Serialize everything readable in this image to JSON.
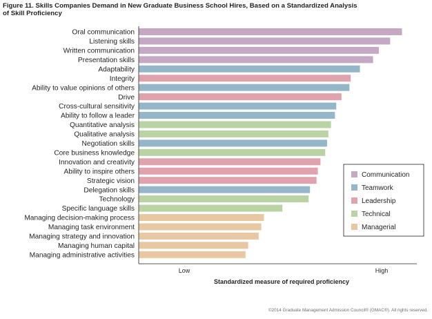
{
  "title_line1": "Figure 11. Skills Companies Demand in New Graduate Business School Hires, Based on a Standardized Analysis",
  "title_line2": "of Skill Proficiency",
  "copyright": "©2014 Graduate Management Admission Council® (GMAC®). All rights reserved.",
  "colors": {
    "Communication": "#c5a8c4",
    "Teamwork": "#95b5c8",
    "Leadership": "#e0a2ac",
    "Technical": "#bad3a4",
    "Managerial": "#e8c8a2"
  },
  "chart_data": {
    "type": "bar",
    "orientation": "horizontal",
    "xlabel": "Standardized measure of required proficiency",
    "ylabel": "",
    "x_ticks": [
      "Low",
      "High"
    ],
    "xlim": [
      0,
      100
    ],
    "legend_position": "right",
    "legend": [
      "Communication",
      "Teamwork",
      "Leadership",
      "Technical",
      "Managerial"
    ],
    "categories": [
      "Oral communication",
      "Listening skills",
      "Written communication",
      "Presentation skills",
      "Adaptability",
      "Integrity",
      "Ability to value opinions of others",
      "Drive",
      "Cross-cultural sensitivity",
      "Ability to follow a leader",
      "Quantitative analysis",
      "Qualitative analysis",
      "Negotiation skills",
      "Core business knowledge",
      "Innovation and creativity",
      "Ability to inspire others",
      "Strategic vision",
      "Delegation skills",
      "Technology",
      "Specific language skills",
      "Managing decision-making process",
      "Managing task environment",
      "Managing strategy and innovation",
      "Managing human capital",
      "Managing administrative activities"
    ],
    "groups": [
      "Communication",
      "Communication",
      "Communication",
      "Communication",
      "Teamwork",
      "Leadership",
      "Teamwork",
      "Leadership",
      "Teamwork",
      "Teamwork",
      "Technical",
      "Technical",
      "Teamwork",
      "Technical",
      "Leadership",
      "Leadership",
      "Leadership",
      "Teamwork",
      "Technical",
      "Technical",
      "Managerial",
      "Managerial",
      "Managerial",
      "Managerial",
      "Managerial"
    ],
    "values": [
      100,
      95.5,
      91.2,
      89.0,
      84.0,
      80.5,
      80.0,
      77.0,
      75.0,
      74.5,
      73.0,
      72.0,
      71.5,
      70.8,
      69.0,
      68.0,
      67.5,
      65.0,
      64.5,
      54.5,
      47.5,
      46.5,
      45.5,
      41.5,
      40.5
    ]
  }
}
